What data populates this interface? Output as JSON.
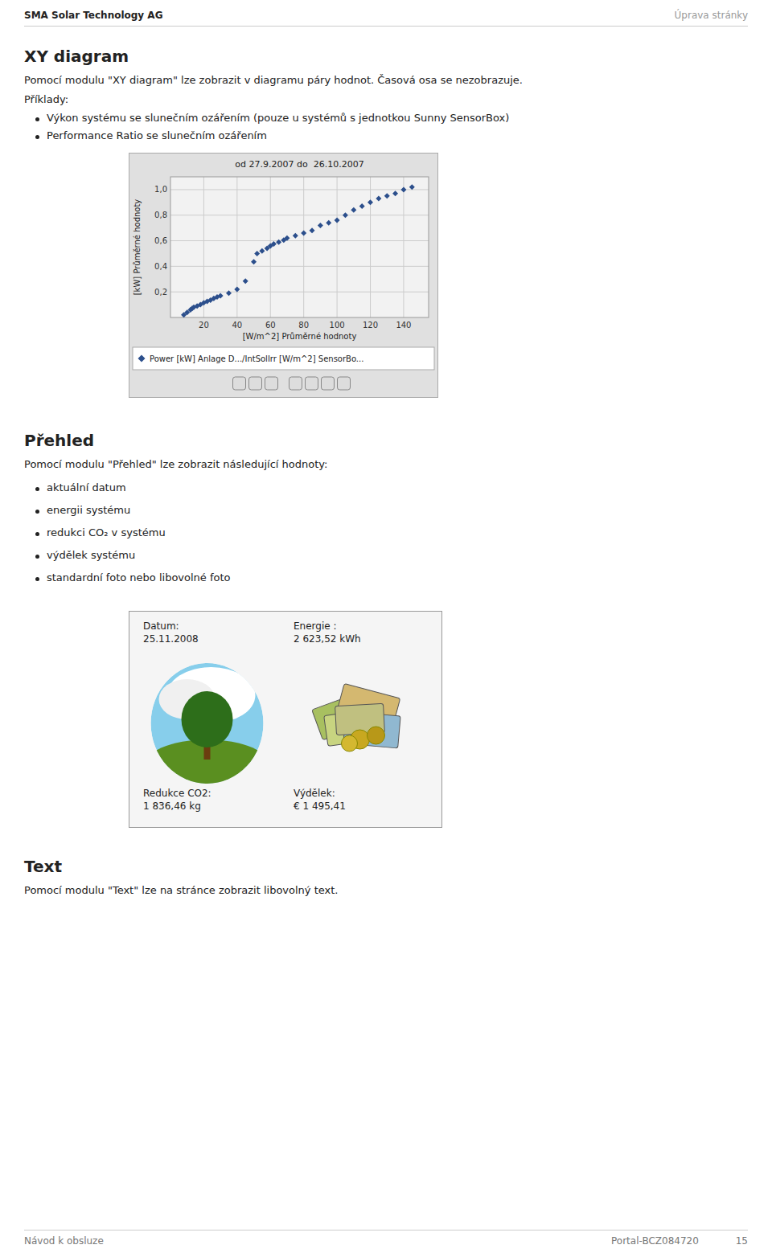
{
  "page": {
    "header_left": "SMA Solar Technology AG",
    "header_right": "Úprava stránky",
    "section1_title": "XY diagram",
    "section1_body": "Pomocí modulu \"XY diagram\" lze zobrazit v diagramu páry hodnot. Časová osa se nezobrazuje.",
    "examples_label": "Příklady:",
    "examples": [
      "Výkon systému se slunečním ozářením (pouze u systémů s jednotkou Sunny SensorBox)",
      "Performance Ratio se slunečním ozářením"
    ],
    "section2_title": "Přehled",
    "section2_body": "Pomocí modulu \"Přehled\" lze zobrazit následující hodnoty:",
    "section2_items": [
      "aktuální datum",
      "energii systému",
      "redukci CO₂ v systému",
      "výdělek systému",
      "standardní foto nebo libovolné foto"
    ],
    "overview": {
      "date_label": "Datum:",
      "date_value": "25.11.2008",
      "energy_label": "Energie :",
      "energy_value": "2 623,52 kWh",
      "co2_label": "Redukce CO2:",
      "co2_value": "1 836,46 kg",
      "earnings_label": "Výdělek:",
      "earnings_value": "€ 1 495,41"
    },
    "section3_title": "Text",
    "section3_body": "Pomocí modulu \"Text\" lze na stránce zobrazit libovolný text.",
    "footer_left": "Návod k obsluze",
    "footer_page": "Portal-BCZ084720",
    "footer_num": "15"
  },
  "chart_data": {
    "type": "scatter",
    "title": "od 27.9.2007 do  26.10.2007",
    "x_label": "[W/m^2] Průměrné hodnoty",
    "y_label": "[kW] Průměrné hodnoty",
    "xlim": [
      0,
      155
    ],
    "ylim": [
      0,
      1.1
    ],
    "xticks": [
      20,
      40,
      60,
      80,
      100,
      120,
      140
    ],
    "yticks": [
      {
        "value": 0.2,
        "label": "0,2"
      },
      {
        "value": 0.4,
        "label": "0,4"
      },
      {
        "value": 0.6,
        "label": "0,6"
      },
      {
        "value": 0.8,
        "label": "0,8"
      },
      {
        "value": 1.0,
        "label": "1,0"
      }
    ],
    "grid": true,
    "legend": "bottom",
    "x": [
      8,
      10,
      12,
      13,
      14,
      16,
      18,
      20,
      22,
      24,
      26,
      28,
      30,
      35,
      40,
      45,
      50,
      52,
      55,
      58,
      60,
      62,
      65,
      68,
      70,
      75,
      80,
      85,
      90,
      95,
      100,
      105,
      110,
      115,
      120,
      125,
      130,
      135,
      140,
      145
    ],
    "series": [
      {
        "name": "Power [kW] Anlage D.../IntSolIrr [W/m^2] SensorBo...",
        "color": "#2c4f8c",
        "marker": "diamond",
        "values": [
          0.02,
          0.04,
          0.06,
          0.07,
          0.08,
          0.09,
          0.1,
          0.115,
          0.125,
          0.135,
          0.15,
          0.16,
          0.17,
          0.19,
          0.22,
          0.285,
          0.435,
          0.5,
          0.52,
          0.54,
          0.56,
          0.575,
          0.59,
          0.605,
          0.62,
          0.64,
          0.66,
          0.68,
          0.72,
          0.74,
          0.76,
          0.8,
          0.84,
          0.87,
          0.9,
          0.93,
          0.95,
          0.97,
          1.0,
          1.02
        ]
      }
    ]
  }
}
